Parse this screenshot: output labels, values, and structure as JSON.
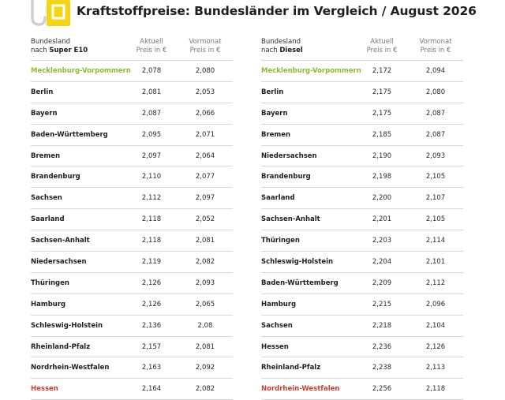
{
  "title": "Kraftstoffpreise: Bundesländer im Vergleich / August 2026",
  "colors": {
    "accent_yellow": "#f5d414",
    "best": "#8dbb2f",
    "worst": "#d23c28"
  },
  "tables": [
    {
      "header": {
        "col1_line1": "Bundesland",
        "col1_line2_prefix": "nach",
        "col1_line2_bold": "Super E10",
        "col2_line1": "Aktuell",
        "col2_line2": "Preis in €",
        "col3_line1": "Vormonat",
        "col3_line2": "Preis in €"
      },
      "rows": [
        {
          "name": "Mecklenburg-Vorpommern",
          "current": "2,078",
          "previous": "2,080",
          "status": "best"
        },
        {
          "name": "Berlin",
          "current": "2,081",
          "previous": "2,053",
          "status": ""
        },
        {
          "name": "Bayern",
          "current": "2,087",
          "previous": "2,066",
          "status": ""
        },
        {
          "name": "Baden-Württemberg",
          "current": "2,095",
          "previous": "2,071",
          "status": ""
        },
        {
          "name": "Bremen",
          "current": "2,097",
          "previous": "2,064",
          "status": ""
        },
        {
          "name": "Brandenburg",
          "current": "2,110",
          "previous": "2,077",
          "status": ""
        },
        {
          "name": "Sachsen",
          "current": "2,112",
          "previous": "2,097",
          "status": ""
        },
        {
          "name": "Saarland",
          "current": "2,118",
          "previous": "2,052",
          "status": ""
        },
        {
          "name": "Sachsen-Anhalt",
          "current": "2,118",
          "previous": "2,081",
          "status": ""
        },
        {
          "name": "Niedersachsen",
          "current": "2,119",
          "previous": "2,082",
          "status": ""
        },
        {
          "name": "Thüringen",
          "current": "2,126",
          "previous": "2,093",
          "status": ""
        },
        {
          "name": "Hamburg",
          "current": "2,126",
          "previous": "2,065",
          "status": ""
        },
        {
          "name": "Schleswig-Holstein",
          "current": "2,136",
          "previous": "2,08",
          "status": ""
        },
        {
          "name": "Rheinland-Pfalz",
          "current": "2,157",
          "previous": "2,081",
          "status": ""
        },
        {
          "name": "Nordrhein-Westfalen",
          "current": "2,163",
          "previous": "2,092",
          "status": ""
        },
        {
          "name": "Hessen",
          "current": "2,164",
          "previous": "2,082",
          "status": "worst"
        }
      ]
    },
    {
      "header": {
        "col1_line1": "Bundesland",
        "col1_line2_prefix": "nach",
        "col1_line2_bold": "Diesel",
        "col2_line1": "Aktuell",
        "col2_line2": "Preis in €",
        "col3_line1": "Vormonat",
        "col3_line2": "Preis in €"
      },
      "rows": [
        {
          "name": "Mecklenburg-Vorpommern",
          "current": "2,172",
          "previous": "2,094",
          "status": "best"
        },
        {
          "name": "Berlin",
          "current": "2,175",
          "previous": "2,080",
          "status": ""
        },
        {
          "name": "Bayern",
          "current": "2,175",
          "previous": "2,087",
          "status": ""
        },
        {
          "name": "Bremen",
          "current": "2,185",
          "previous": "2,087",
          "status": ""
        },
        {
          "name": "Niedersachsen",
          "current": "2,190",
          "previous": "2,093",
          "status": ""
        },
        {
          "name": "Brandenburg",
          "current": "2,198",
          "previous": "2,105",
          "status": ""
        },
        {
          "name": "Saarland",
          "current": "2,200",
          "previous": "2,107",
          "status": ""
        },
        {
          "name": "Sachsen-Anhalt",
          "current": "2,201",
          "previous": "2,105",
          "status": ""
        },
        {
          "name": "Thüringen",
          "current": "2,203",
          "previous": "2,114",
          "status": ""
        },
        {
          "name": "Schleswig-Holstein",
          "current": "2,204",
          "previous": "2,101",
          "status": ""
        },
        {
          "name": "Baden-Württemberg",
          "current": "2,209",
          "previous": "2,112",
          "status": ""
        },
        {
          "name": "Hamburg",
          "current": "2,215",
          "previous": "2,096",
          "status": ""
        },
        {
          "name": "Sachsen",
          "current": "2,218",
          "previous": "2,104",
          "status": ""
        },
        {
          "name": "Hessen",
          "current": "2,236",
          "previous": "2,126",
          "status": ""
        },
        {
          "name": "Rheinland-Pfalz",
          "current": "2,238",
          "previous": "2,113",
          "status": ""
        },
        {
          "name": "Nordrhein-Westfalen",
          "current": "2,256",
          "previous": "2,118",
          "status": "worst"
        }
      ]
    }
  ]
}
